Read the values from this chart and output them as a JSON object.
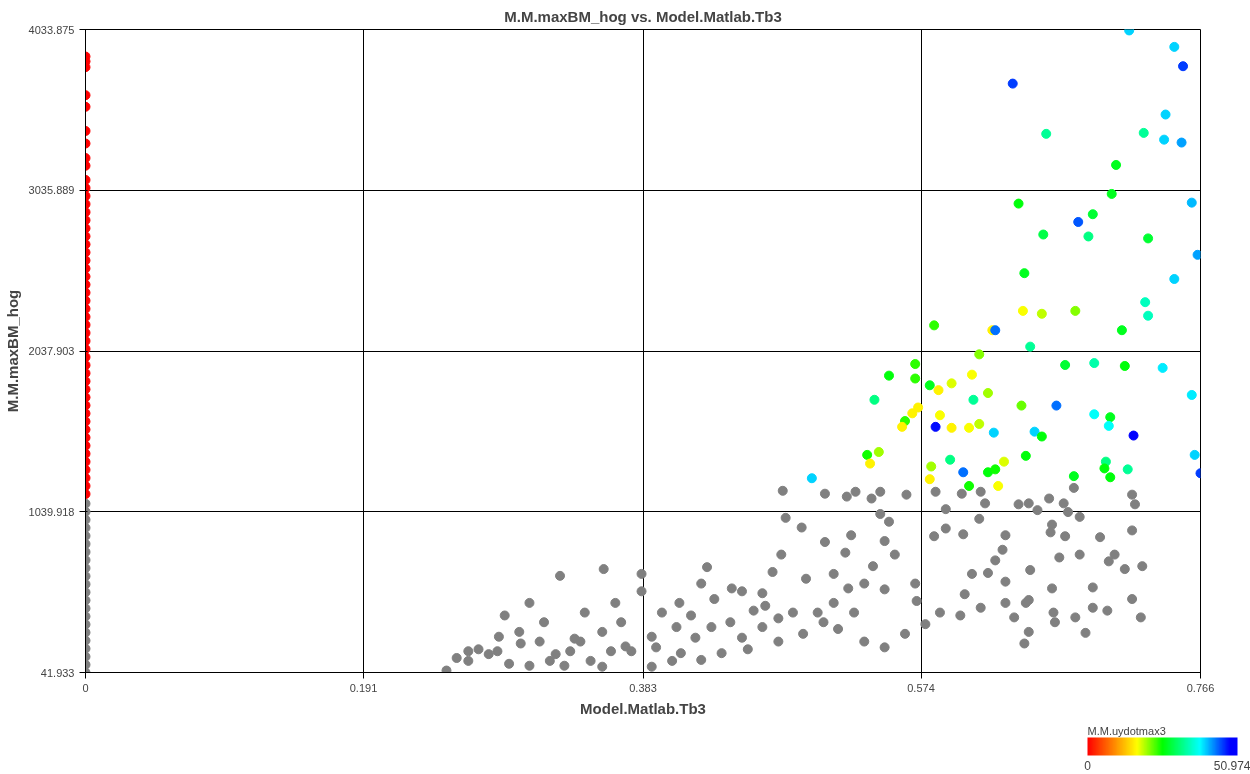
{
  "chart_data": {
    "type": "scatter",
    "title": "M.M.maxBM_hog vs. Model.Matlab.Tb3",
    "xlabel": "Model.Matlab.Tb3",
    "ylabel": "M.M.maxBM_hog",
    "clabel": "M.M.uydotmax3",
    "xlim": [
      0,
      0.766
    ],
    "ylim": [
      41.933,
      4033.875
    ],
    "xticks": [
      0,
      0.191,
      0.383,
      0.574,
      0.766
    ],
    "yticks": [
      41.933,
      1039.918,
      2037.903,
      3035.889,
      4033.875
    ],
    "clim": [
      0,
      50.974
    ],
    "cticks": [
      0,
      50.974
    ],
    "grid": true,
    "marker": "circle",
    "series": [
      {
        "color": "#808080",
        "x": [
          0,
          0,
          0,
          0,
          0,
          0,
          0,
          0,
          0,
          0,
          0,
          0,
          0,
          0,
          0,
          0,
          0,
          0,
          0,
          0,
          0,
          0,
          0.479,
          0.508,
          0.523,
          0.529,
          0.54,
          0.546,
          0.564,
          0.584,
          0.602,
          0.591,
          0.615,
          0.618,
          0.648,
          0.662,
          0.672,
          0.679,
          0.719,
          0.721,
          0.481,
          0.546,
          0.614,
          0.654,
          0.664,
          0.675,
          0.683,
          0.669,
          0.664,
          0.665,
          0.703,
          0.702,
          0.719,
          0.726,
          0.719,
          0.673,
          0.683,
          0.697,
          0.663,
          0.641,
          0.632,
          0.63,
          0.625,
          0.609,
          0.62,
          0.632,
          0.632,
          0.649,
          0.648,
          0.591,
          0.603,
          0.583,
          0.552,
          0.549,
          0.556,
          0.541,
          0.526,
          0.522,
          0.508,
          0.514,
          0.495,
          0.492,
          0.478,
          0.472,
          0.467,
          0.465,
          0.476,
          0.459,
          0.451,
          0.451,
          0.427,
          0.423,
          0.432,
          0.443,
          0.419,
          0.408,
          0.396,
          0.392,
          0.403,
          0.382,
          0.382,
          0.364,
          0.368,
          0.355,
          0.343,
          0.34,
          0.323,
          0.326,
          0.315,
          0.305,
          0.299,
          0.288,
          0.283,
          0.263,
          0.255,
          0.248,
          0.27,
          0.277,
          0.291,
          0.305,
          0.319,
          0.333,
          0.336,
          0.355,
          0.356,
          0.371,
          0.389,
          0.409,
          0.423,
          0.437,
          0.455,
          0.476,
          0.493,
          0.507,
          0.517,
          0.528,
          0.535,
          0.549,
          0.563,
          0.577,
          0.587,
          0.601,
          0.604,
          0.615,
          0.571,
          0.57,
          0.549,
          0.535,
          0.524,
          0.514,
          0.503,
          0.486,
          0.465,
          0.444,
          0.43,
          0.416,
          0.406,
          0.389,
          0.375,
          0.361,
          0.347,
          0.329,
          0.312,
          0.298,
          0.284,
          0.263,
          0.645,
          0.687,
          0.666,
          0.68,
          0.692,
          0.725,
          0.692,
          0.714,
          0.707,
          0.646,
          0.638,
          0.648
        ],
        "values": [
          42,
          90,
          140,
          190,
          240,
          290,
          340,
          390,
          440,
          490,
          540,
          590,
          640,
          690,
          740,
          790,
          840,
          890,
          940,
          990,
          1040,
          1090,
          1170,
          1152,
          1134,
          1164,
          1122,
          1164,
          1146,
          1164,
          1152,
          1056,
          1164,
          1092,
          1092,
          1122,
          1092,
          1188,
          1146,
          1086,
          1002,
          1026,
          996,
          1050,
          960,
          1038,
          1008,
          756,
          564,
          414,
          732,
          426,
          498,
          702,
          924,
          888,
          774,
          882,
          912,
          1086,
          894,
          804,
          738,
          654,
          660,
          606,
          474,
          678,
          492,
          936,
          900,
          888,
          978,
          858,
          774,
          702,
          894,
          786,
          852,
          654,
          624,
          942,
          774,
          666,
          456,
          324,
          378,
          426,
          546,
          258,
          696,
          594,
          498,
          354,
          258,
          474,
          414,
          198,
          114,
          654,
          546,
          474,
          354,
          294,
          414,
          234,
          156,
          642,
          354,
          474,
          222,
          396,
          174,
          114,
          132,
          54,
          186,
          156,
          96,
          84,
          114,
          174,
          252,
          78,
          684,
          204,
          78,
          162,
          120,
          162,
          186,
          234,
          282,
          354,
          312,
          414,
          234,
          198,
          282,
          342,
          414,
          396,
          528,
          444,
          486,
          594,
          558,
          594,
          564,
          474,
          414,
          414,
          534,
          564,
          324,
          396,
          324,
          264,
          174,
          174,
          114,
          84,
          234,
          294,
          264,
          174,
          222,
          288,
          354,
          384,
          444,
          384,
          570,
          684,
          774,
          474,
          384,
          294
        ]
      },
      {
        "x": [
          0,
          0,
          0,
          0,
          0,
          0,
          0,
          0,
          0,
          0,
          0,
          0,
          0,
          0,
          0,
          0,
          0,
          0,
          0,
          0,
          0,
          0,
          0,
          0,
          0,
          0,
          0,
          0,
          0,
          0,
          0,
          0,
          0,
          0,
          0,
          0,
          0,
          0,
          0,
          0,
          0,
          0,
          0,
          0,
          0,
          0,
          0,
          0,
          0,
          0.717,
          0.748,
          0.754,
          0.637,
          0.742,
          0.66,
          0.727,
          0.741,
          0.753,
          0.708,
          0.705,
          0.641,
          0.76,
          0.692,
          0.682,
          0.658,
          0.689,
          0.73,
          0.764,
          0.645,
          0.748,
          0.728,
          0.644,
          0.657,
          0.68,
          0.583,
          0.623,
          0.625,
          0.712,
          0.73,
          0.649,
          0.614,
          0.57,
          0.552,
          0.57,
          0.609,
          0.673,
          0.693,
          0.714,
          0.74,
          0.58,
          0.595,
          0.586,
          0.76,
          0.542,
          0.572,
          0.62,
          0.61,
          0.643,
          0.667,
          0.568,
          0.563,
          0.587,
          0.561,
          0.693,
          0.704,
          0.703,
          0.584,
          0.595,
          0.607,
          0.614,
          0.624,
          0.652,
          0.657,
          0.72,
          0.537,
          0.545,
          0.539,
          0.594,
          0.646,
          0.701,
          0.762,
          0.581,
          0.631,
          0.603,
          0.62,
          0.625,
          0.679,
          0.7,
          0.716,
          0.766,
          0.58,
          0.607,
          0.627,
          0.704,
          0.499
        ],
        "values": [
          1150,
          1200,
          1250,
          1300,
          1350,
          1400,
          1450,
          1500,
          1550,
          1600,
          1650,
          1700,
          1750,
          1800,
          1850,
          1900,
          1950,
          2000,
          2050,
          2100,
          2150,
          2200,
          2250,
          2300,
          2350,
          2400,
          2450,
          2500,
          2550,
          2600,
          2650,
          2700,
          2750,
          2800,
          2850,
          2900,
          2950,
          3000,
          3050,
          3100,
          3188,
          3236,
          3326,
          3404,
          3554,
          3626,
          3800,
          3836,
          3866,
          4028,
          3926,
          3806,
          3698,
          3506,
          3386,
          3392,
          3350,
          3332,
          3193,
          3013,
          2953,
          2959,
          2887,
          2839,
          2761,
          2749,
          2737,
          2635,
          2521,
          2485,
          2341,
          2287,
          2269,
          2287,
          2197,
          2167,
          2167,
          2167,
          2257,
          2065,
          2017,
          1957,
          1885,
          1867,
          1891,
          1951,
          1963,
          1945,
          1933,
          1825,
          1837,
          1795,
          1765,
          1735,
          1687,
          1777,
          1735,
          1699,
          1699,
          1651,
          1603,
          1639,
          1567,
          1645,
          1627,
          1573,
          1567,
          1561,
          1561,
          1585,
          1531,
          1537,
          1507,
          1513,
          1393,
          1411,
          1339,
          1363,
          1387,
          1351,
          1393,
          1321,
          1351,
          1285,
          1285,
          1303,
          1261,
          1309,
          1303,
          1279,
          1242,
          1200,
          1200,
          1254,
          1248
        ],
        "colors": [
          "#ff0000",
          "#ff0000",
          "#ff0000",
          "#ff0000",
          "#ff0000",
          "#ff0000",
          "#ff0000",
          "#ff0000",
          "#ff0000",
          "#ff0000",
          "#ff0000",
          "#ff0000",
          "#ff0000",
          "#ff0000",
          "#ff0000",
          "#ff0000",
          "#ff0000",
          "#ff0000",
          "#ff0000",
          "#ff0000",
          "#ff0000",
          "#ff0000",
          "#ff0000",
          "#ff0000",
          "#ff0000",
          "#ff0000",
          "#ff0000",
          "#ff0000",
          "#ff0000",
          "#ff0000",
          "#ff0000",
          "#ff0000",
          "#ff0000",
          "#ff0000",
          "#ff0000",
          "#ff0000",
          "#ff0000",
          "#ff0000",
          "#ff0000",
          "#ff0000",
          "#ff0000",
          "#ff0000",
          "#ff0000",
          "#ff0000",
          "#ff0000",
          "#ff0000",
          "#ff0000",
          "#ff0000",
          "#ff0000",
          "#00d3ff",
          "#00d3ff",
          "#003dff",
          "#003dff",
          "#00d3ff",
          "#00ff96",
          "#00ff96",
          "#00d3ff",
          "#00a1ff",
          "#00ff1e",
          "#00ff1e",
          "#00ff0a",
          "#00baff",
          "#00ff32",
          "#0056ff",
          "#00ff46",
          "#00ff82",
          "#00ff32",
          "#00a1ff",
          "#00ff1e",
          "#00d3ff",
          "#00ffbe",
          "#faff00",
          "#bfff00",
          "#84ff00",
          "#2cff00",
          "#fff300",
          "#006fff",
          "#00ff1e",
          "#00ffbe",
          "#00ff96",
          "#84ff00",
          "#2cff00",
          "#00ff0a",
          "#2cff00",
          "#faff00",
          "#00ff32",
          "#00ffaa",
          "#00ff0a",
          "#00ecff",
          "#00ff1e",
          "#dcff00",
          "#fff300",
          "#00ecff",
          "#00ff82",
          "#fff300",
          "#a1ff00",
          "#00ff96",
          "#67ff00",
          "#006fff",
          "#fff300",
          "#2cff00",
          "#faff00",
          "#fff300",
          "#00fffa",
          "#00ff1e",
          "#00fffa",
          "#000bff",
          "#fff300",
          "#faff00",
          "#bfff00",
          "#00d3ff",
          "#00d3ff",
          "#00ff0a",
          "#0000ff",
          "#0eff00",
          "#a1ff00",
          "#fff300",
          "#00ff82",
          "#00ff0a",
          "#00ff82",
          "#00d3ff",
          "#a1ff00",
          "#dcff00",
          "#006fff",
          "#00ff0a",
          "#0eff00",
          "#00ff1e",
          "#00ff0a",
          "#00ff96",
          "#003dff",
          "#fff300",
          "#0eff00",
          "#faff00",
          "#00ff0a",
          "#00d3ff"
        ],
        "cvalues": [
          0,
          0,
          0,
          0,
          0,
          0,
          0,
          0,
          0,
          0,
          0,
          0,
          0,
          0,
          0,
          0,
          0,
          0,
          0,
          0,
          0,
          0,
          0,
          0,
          0,
          0,
          0,
          0,
          0,
          0,
          0,
          0,
          0,
          0,
          0,
          0,
          0,
          0,
          0,
          0,
          0,
          0,
          0,
          0,
          0,
          0,
          0,
          0,
          0,
          40,
          40,
          46,
          46,
          40,
          33,
          33,
          40,
          42,
          27,
          27,
          26,
          41,
          28,
          45,
          29,
          32,
          28,
          42,
          27,
          40,
          35,
          17,
          19,
          21,
          24,
          16,
          44,
          27,
          35,
          33,
          21,
          24,
          26,
          24,
          17,
          28,
          34,
          26,
          39,
          27,
          18,
          16,
          39,
          32,
          16,
          20,
          33,
          22,
          44,
          16,
          24,
          17,
          16,
          38,
          27,
          38,
          48,
          16,
          17,
          19,
          40,
          40,
          26,
          50,
          25,
          20,
          16,
          32,
          26,
          32,
          40,
          20,
          18,
          44,
          26,
          25,
          27,
          26,
          33,
          46,
          16,
          25,
          17,
          26,
          40
        ]
      }
    ]
  }
}
